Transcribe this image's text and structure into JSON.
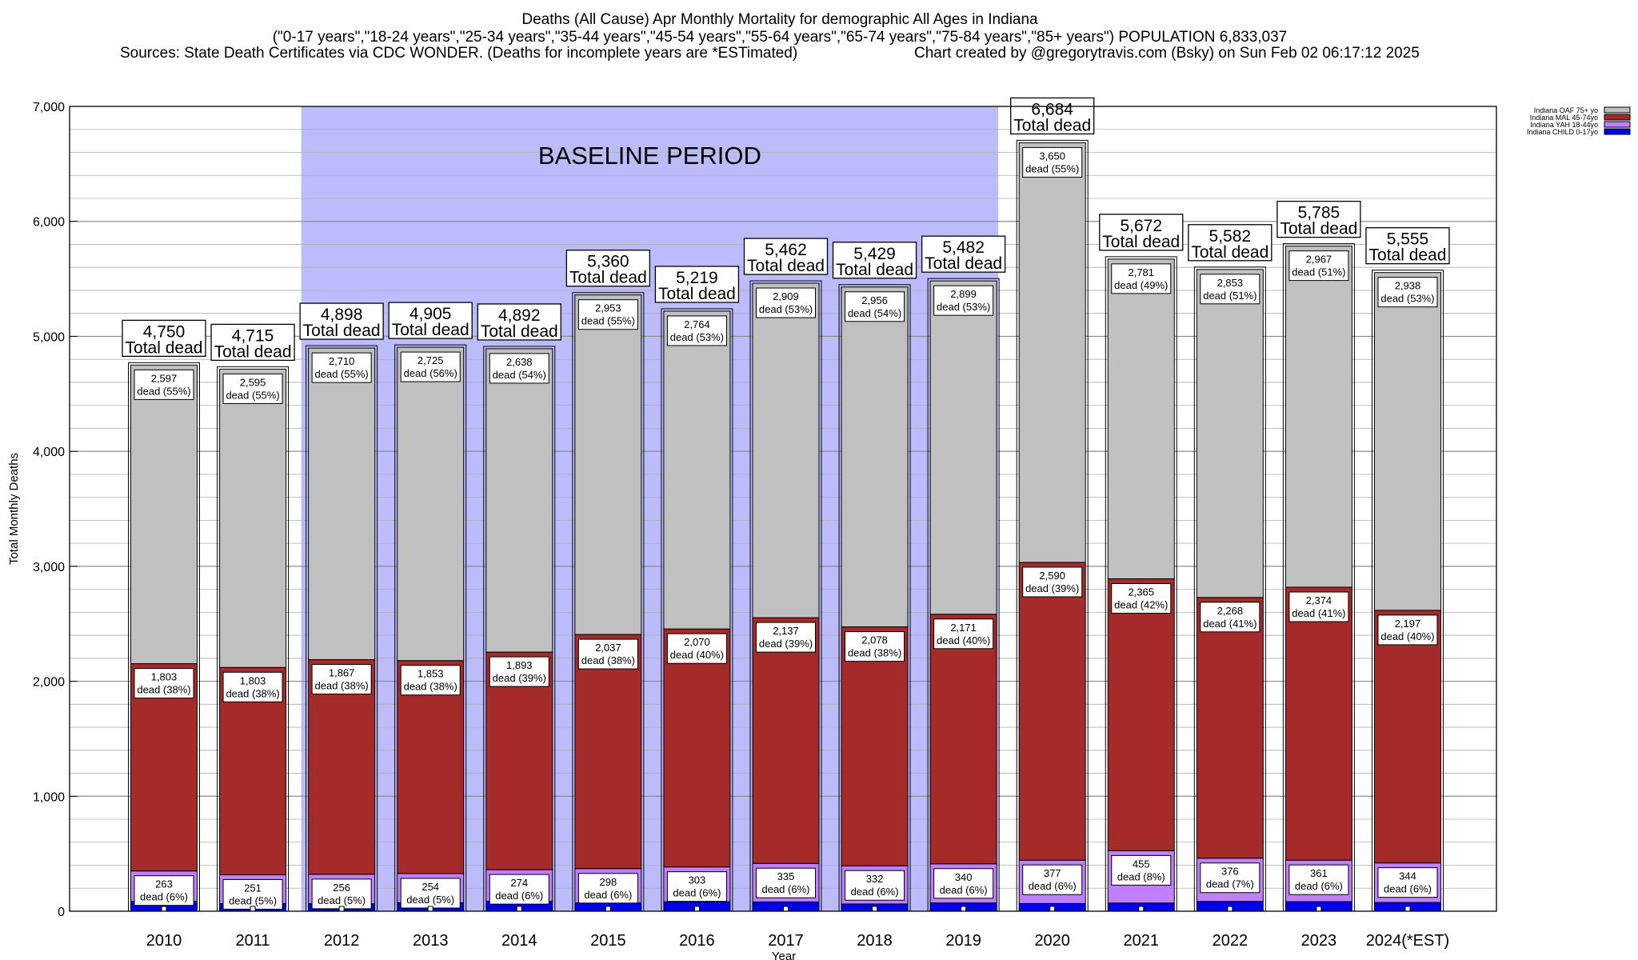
{
  "header": {
    "line1": "Deaths (All Cause) Apr Monthly Mortality for demographic All Ages in Indiana",
    "line2": "(\"0-17 years\",\"18-24 years\",\"25-34 years\",\"35-44 years\",\"45-54 years\",\"55-64 years\",\"65-74 years\",\"75-84 years\",\"85+ years\") POPULATION 6,833,037",
    "line3_left": "Sources: State Death Certificates via CDC WONDER. (Deaths for incomplete years are *ESTimated)",
    "line3_right": "Chart created by @gregorytravis.com (Bsky) on Sun Feb 02 06:17:12 2025"
  },
  "chart_data": {
    "type": "bar",
    "stacked": true,
    "xlabel": "Year",
    "ylabel": "Total Monthly Deaths",
    "ylim": [
      0,
      7000
    ],
    "yticks": [
      "0",
      "1,000",
      "2,000",
      "3,000",
      "4,000",
      "5,000",
      "6,000",
      "7,000"
    ],
    "grid": true,
    "legend_position": "top-right",
    "categories": [
      "2010",
      "2011",
      "2012",
      "2013",
      "2014",
      "2015",
      "2016",
      "2017",
      "2018",
      "2019",
      "2020",
      "2021",
      "2022",
      "2023",
      "2024(*EST)"
    ],
    "baseline": {
      "label": "BASELINE PERIOD",
      "start": "2012",
      "end": "2019",
      "color": "#bcbcfc"
    },
    "total_label": "Total dead",
    "totals": [
      "4,750",
      "4,715",
      "4,898",
      "4,905",
      "4,892",
      "5,360",
      "5,219",
      "5,462",
      "5,429",
      "5,482",
      "6,684",
      "5,672",
      "5,582",
      "5,785",
      "5,555"
    ],
    "series": [
      {
        "name": "Indiana CHILD 0-17yo",
        "color": "#0000ee",
        "values": [
          87,
          66,
          65,
          73,
          87,
          72,
          82,
          81,
          63,
          72,
          67,
          71,
          85,
          83,
          76
        ]
      },
      {
        "name": "Indiana YAH 18-44yo",
        "color": "#c080fc",
        "values": [
          263,
          251,
          256,
          254,
          274,
          298,
          303,
          335,
          332,
          340,
          377,
          455,
          376,
          361,
          344
        ],
        "labels": [
          "263\ndead (6%)",
          "251\ndead (5%)",
          "256\ndead (5%)",
          "254\ndead (5%)",
          "274\ndead (6%)",
          "298\ndead (6%)",
          "303\ndead (6%)",
          "335\ndead (6%)",
          "332\ndead (6%)",
          "340\ndead (6%)",
          "377\ndead (6%)",
          "455\ndead (8%)",
          "376\ndead (7%)",
          "361\ndead (6%)",
          "344\ndead (6%)"
        ]
      },
      {
        "name": "Indiana MAL 45-74yo",
        "color": "#a52a2a",
        "values": [
          1803,
          1803,
          1867,
          1853,
          1893,
          2037,
          2070,
          2137,
          2078,
          2171,
          2590,
          2365,
          2268,
          2374,
          2197
        ],
        "labels": [
          "1,803\ndead (38%)",
          "1,803\ndead (38%)",
          "1,867\ndead (38%)",
          "1,853\ndead (38%)",
          "1,893\ndead (39%)",
          "2,037\ndead (38%)",
          "2,070\ndead (40%)",
          "2,137\ndead (39%)",
          "2,078\ndead (38%)",
          "2,171\ndead (40%)",
          "2,590\ndead (39%)",
          "2,365\ndead (42%)",
          "2,268\ndead (41%)",
          "2,374\ndead (41%)",
          "2,197\ndead (40%)"
        ]
      },
      {
        "name": "Indiana OAF 75+ yo",
        "color": "#c0c0c0",
        "values": [
          2597,
          2595,
          2710,
          2725,
          2638,
          2953,
          2764,
          2909,
          2956,
          2899,
          3650,
          2781,
          2853,
          2967,
          2938
        ],
        "labels": [
          "2,597\ndead (55%)",
          "2,595\ndead (55%)",
          "2,710\ndead (55%)",
          "2,725\ndead (56%)",
          "2,638\ndead (54%)",
          "2,953\ndead (55%)",
          "2,764\ndead (53%)",
          "2,909\ndead (53%)",
          "2,956\ndead (54%)",
          "2,899\ndead (53%)",
          "3,650\ndead (55%)",
          "2,781\ndead (49%)",
          "2,853\ndead (51%)",
          "2,967\ndead (51%)",
          "2,938\ndead (53%)"
        ]
      }
    ]
  }
}
